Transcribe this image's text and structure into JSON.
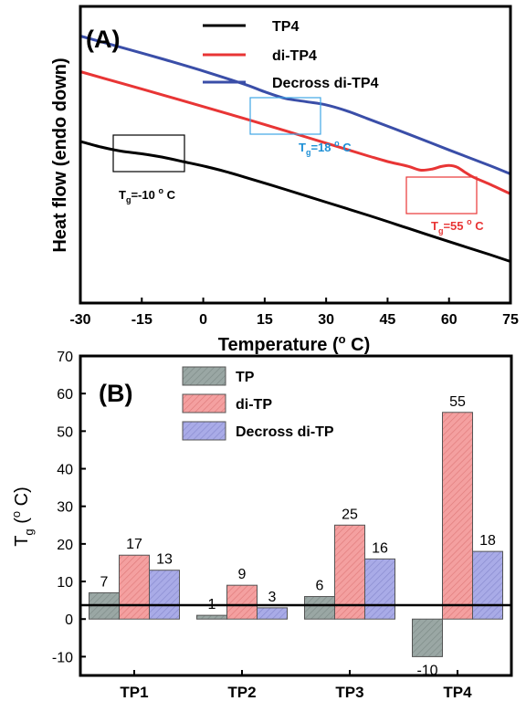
{
  "colors": {
    "black": "#000000",
    "red": "#e83535",
    "blue": "#3a4ea8",
    "cyan_label": "#1e90d6",
    "gray_bar": "#9aa7a4",
    "red_bar": "#f4a0a0",
    "blue_bar": "#a9abe7"
  },
  "chart_data": [
    {
      "type": "line",
      "panel_label": "(A)",
      "xlabel": "Temperature (",
      "xlabel_sup": "o",
      "xlabel_tail": " C)",
      "ylabel": "Heat flow (endo down)",
      "xlim": [
        -30,
        75
      ],
      "x_ticks": [
        "-30",
        "-15",
        "0",
        "15",
        "30",
        "45",
        "60",
        "75"
      ],
      "y_ticks_shown": false,
      "legend_position": "top-right",
      "series": [
        {
          "name": "TP4",
          "color": "#000000",
          "x": [
            -30,
            -25,
            -20,
            -15,
            -10,
            -5,
            0,
            5,
            10,
            20,
            30,
            40,
            50,
            60,
            70,
            75
          ],
          "y": [
            0.545,
            0.526,
            0.512,
            0.503,
            0.492,
            0.477,
            0.462,
            0.445,
            0.425,
            0.383,
            0.34,
            0.297,
            0.252,
            0.207,
            0.163,
            0.14
          ]
        },
        {
          "name": "di-TP4",
          "color": "#e83535",
          "x": [
            -30,
            -20,
            -10,
            0,
            10,
            20,
            30,
            40,
            45,
            50,
            53,
            56,
            58,
            60,
            62,
            64,
            66,
            70,
            75
          ],
          "y": [
            0.78,
            0.741,
            0.702,
            0.662,
            0.622,
            0.581,
            0.539,
            0.497,
            0.477,
            0.461,
            0.448,
            0.452,
            0.46,
            0.464,
            0.458,
            0.44,
            0.424,
            0.4,
            0.368
          ]
        },
        {
          "name": "Decross di-TP4",
          "color": "#3a4ea8",
          "x": [
            -30,
            -20,
            -10,
            0,
            10,
            15,
            20,
            25,
            30,
            35,
            40,
            50,
            60,
            70,
            75
          ],
          "y": [
            0.9,
            0.862,
            0.823,
            0.782,
            0.738,
            0.712,
            0.69,
            0.679,
            0.668,
            0.648,
            0.622,
            0.57,
            0.516,
            0.463,
            0.435
          ]
        }
      ],
      "annotations": [
        {
          "pre": "T",
          "sub": "g",
          "mid": "=-10 ",
          "sup": "o",
          "tail": " C",
          "color": "#000000"
        },
        {
          "pre": "T",
          "sub": "g",
          "mid": "=18 ",
          "sup": "o",
          "tail": " C",
          "color": "#1e90d6"
        },
        {
          "pre": "T",
          "sub": "g",
          "mid": "=55 ",
          "sup": "o",
          "tail": " C",
          "color": "#e83535"
        }
      ]
    },
    {
      "type": "bar",
      "panel_label": "(B)",
      "categories": [
        "TP1",
        "TP2",
        "TP3",
        "TP4"
      ],
      "ylim": [
        -15,
        70
      ],
      "y_ticks": [
        -10,
        0,
        10,
        20,
        30,
        40,
        50,
        60,
        70
      ],
      "ylabel_main": "T",
      "ylabel_sub": "g",
      "ylabel_tail": " (",
      "ylabel_sup": "o",
      "ylabel_end": " C)",
      "legend_position": "top-center",
      "series": [
        {
          "name": "TP",
          "color": "#9aa7a4",
          "values": [
            7,
            1,
            6,
            -10
          ]
        },
        {
          "name": "di-TP",
          "color": "#f4a0a0",
          "values": [
            17,
            9,
            25,
            55
          ]
        },
        {
          "name": "Decross di-TP",
          "color": "#a9abe7",
          "values": [
            13,
            3,
            16,
            18
          ]
        }
      ]
    }
  ]
}
